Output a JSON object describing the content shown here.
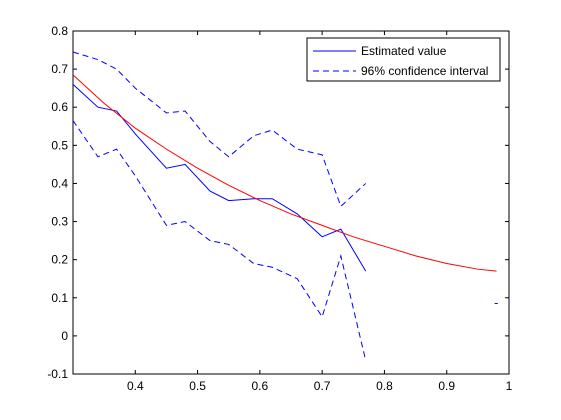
{
  "chart_data": {
    "type": "line",
    "title": "",
    "xlabel": "",
    "ylabel": "",
    "xlim": [
      0.3,
      1.0
    ],
    "ylim": [
      -0.1,
      0.8
    ],
    "xticks": [
      "0.4",
      "0.5",
      "0.6",
      "0.7",
      "0.8",
      "0.9",
      "1"
    ],
    "xtick_values": [
      0.4,
      0.5,
      0.6,
      0.7,
      0.8,
      0.9,
      1.0
    ],
    "yticks": [
      "-0.1",
      "0",
      "0.1",
      "0.2",
      "0.3",
      "0.4",
      "0.5",
      "0.6",
      "0.7",
      "0.8"
    ],
    "ytick_values": [
      -0.1,
      0,
      0.1,
      0.2,
      0.3,
      0.4,
      0.5,
      0.6,
      0.7,
      0.8
    ],
    "grid": false,
    "legend_position": "top-right",
    "colors": {
      "blue": "#0000ff",
      "red": "#ff0000"
    },
    "legend": [
      {
        "label": "Estimated value",
        "style": "solid",
        "color": "#0000ff"
      },
      {
        "label": "96% confidence interval",
        "style": "dashed",
        "color": "#0000ff"
      }
    ],
    "series": [
      {
        "name": "Estimated value",
        "style": "solid",
        "color": "#0000ff",
        "x": [
          0.3,
          0.34,
          0.37,
          0.4,
          0.45,
          0.48,
          0.52,
          0.55,
          0.59,
          0.62,
          0.66,
          0.7,
          0.73,
          0.77
        ],
        "y": [
          0.66,
          0.6,
          0.59,
          0.53,
          0.44,
          0.45,
          0.38,
          0.355,
          0.36,
          0.36,
          0.32,
          0.26,
          0.28,
          0.17
        ]
      },
      {
        "name": "96% confidence interval",
        "style": "dashed",
        "color": "#0000ff",
        "x": [
          0.3,
          0.34,
          0.37,
          0.4,
          0.45,
          0.48,
          0.52,
          0.55,
          0.59,
          0.62,
          0.66,
          0.7,
          0.73,
          0.77
        ],
        "y": [
          0.745,
          0.725,
          0.7,
          0.65,
          0.585,
          0.59,
          0.51,
          0.47,
          0.525,
          0.54,
          0.49,
          0.475,
          0.34,
          0.4
        ]
      },
      {
        "name": "96% confidence interval",
        "style": "dashed",
        "color": "#0000ff",
        "x": [
          0.3,
          0.34,
          0.37,
          0.4,
          0.45,
          0.48,
          0.52,
          0.55,
          0.59,
          0.62,
          0.66,
          0.7,
          0.73,
          0.77
        ],
        "y": [
          0.565,
          0.47,
          0.49,
          0.42,
          0.29,
          0.3,
          0.25,
          0.24,
          0.19,
          0.18,
          0.15,
          0.05,
          0.21,
          -0.065
        ]
      },
      {
        "name": "",
        "style": "solid",
        "color": "#ff0000",
        "x": [
          0.3,
          0.35,
          0.4,
          0.45,
          0.5,
          0.55,
          0.6,
          0.65,
          0.7,
          0.75,
          0.8,
          0.85,
          0.9,
          0.95,
          0.98
        ],
        "y": [
          0.685,
          0.61,
          0.545,
          0.49,
          0.44,
          0.395,
          0.355,
          0.32,
          0.29,
          0.26,
          0.235,
          0.21,
          0.19,
          0.175,
          0.17
        ]
      },
      {
        "name": "",
        "style": "dashed",
        "color": "#0000ff",
        "x": [
          0.977,
          0.982
        ],
        "y": [
          0.085,
          0.085
        ]
      }
    ]
  }
}
